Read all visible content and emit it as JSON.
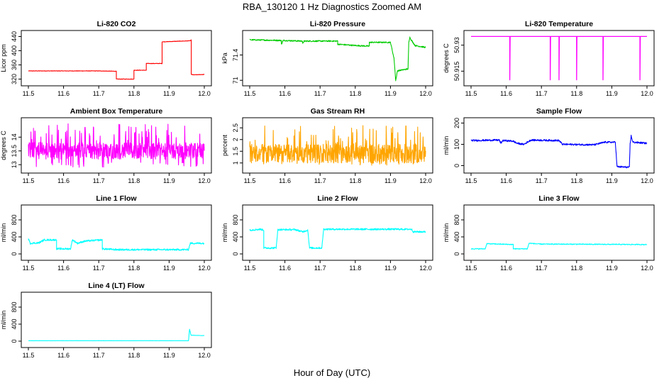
{
  "main_title": "RBA_130120  1 Hz Diagnostics Zoomed AM",
  "x_axis_label": "Hour of Day (UTC)",
  "chart_data": [
    {
      "id": "co2",
      "type": "line",
      "title": "Li-820 CO2",
      "ylabel": "Licor ppm",
      "color": "#ff0000",
      "noise": 0.6,
      "xlim": [
        11.5,
        12.0
      ],
      "ylim": [
        313,
        445
      ],
      "x_ticks": [
        "11.5",
        "11.6",
        "11.7",
        "11.8",
        "11.9",
        "12.0"
      ],
      "y_ticks": [
        320,
        360,
        400,
        440
      ],
      "points": [
        [
          11.5,
          343
        ],
        [
          11.7,
          343
        ],
        [
          11.7,
          343
        ],
        [
          11.75,
          342
        ],
        [
          11.75,
          320
        ],
        [
          11.8,
          320
        ],
        [
          11.8,
          345
        ],
        [
          11.835,
          345
        ],
        [
          11.835,
          364
        ],
        [
          11.88,
          364
        ],
        [
          11.88,
          425
        ],
        [
          11.96,
          428
        ],
        [
          11.963,
          430
        ],
        [
          11.963,
          333
        ],
        [
          11.97,
          332
        ],
        [
          12.0,
          333
        ]
      ]
    },
    {
      "id": "pressure",
      "type": "line",
      "title": "Li-820 Pressure",
      "ylabel": "kPa",
      "color": "#00cc00",
      "noise": 0.01,
      "xlim": [
        11.5,
        12.0
      ],
      "ylim": [
        70.98,
        71.72
      ],
      "x_ticks": [
        "11.5",
        "11.6",
        "11.7",
        "11.8",
        "11.9",
        "12.0"
      ],
      "y_ticks": [
        71.0,
        71.4
      ],
      "points": [
        [
          11.5,
          71.64
        ],
        [
          11.59,
          71.63
        ],
        [
          11.59,
          71.57
        ],
        [
          11.595,
          71.63
        ],
        [
          11.65,
          71.62
        ],
        [
          11.65,
          71.58
        ],
        [
          11.655,
          71.62
        ],
        [
          11.75,
          71.62
        ],
        [
          11.75,
          71.57
        ],
        [
          11.8,
          71.55
        ],
        [
          11.84,
          71.54
        ],
        [
          11.84,
          71.6
        ],
        [
          11.9,
          71.6
        ],
        [
          11.91,
          71.35
        ],
        [
          11.915,
          71.0
        ],
        [
          11.92,
          71.15
        ],
        [
          11.95,
          71.18
        ],
        [
          11.952,
          71.6
        ],
        [
          11.955,
          71.68
        ],
        [
          11.96,
          71.63
        ],
        [
          11.97,
          71.55
        ],
        [
          12.0,
          71.52
        ]
      ]
    },
    {
      "id": "temperature",
      "type": "line",
      "title": "Li-820 Temperature",
      "ylabel": "degrees C",
      "color": "#ff00ff",
      "noise": 0,
      "xlim": [
        11.5,
        12.0
      ],
      "ylim": [
        50.909,
        50.936
      ],
      "x_ticks": [
        "11.5",
        "11.6",
        "11.7",
        "11.8",
        "11.9",
        "12.0"
      ],
      "y_ticks": [
        50.915,
        50.93
      ],
      "spike_base": 50.935,
      "spike_low": 50.91,
      "spikes": [
        11.61,
        11.725,
        11.75,
        11.8,
        11.875,
        11.98
      ]
    },
    {
      "id": "ambient",
      "type": "line",
      "title": "Ambient Box Temperature",
      "ylabel": "degrees C",
      "color": "#ff00ff",
      "noise": 0.3,
      "xlim": [
        11.5,
        12.0
      ],
      "ylim": [
        12.85,
        14.55
      ],
      "x_ticks": [
        "11.5",
        "11.6",
        "11.7",
        "11.8",
        "11.9",
        "12.0"
      ],
      "y_ticks": [
        13.0,
        13.5,
        14.0
      ],
      "noise_base": 13.5,
      "noise_lo": 12.9,
      "noise_hi": 14.5
    },
    {
      "id": "rh",
      "type": "line",
      "title": "Gas Stream RH",
      "ylabel": "percent",
      "color": "#ffa500",
      "noise": 0.4,
      "xlim": [
        11.5,
        12.0
      ],
      "ylim": [
        0.75,
        2.75
      ],
      "x_ticks": [
        "11.5",
        "11.6",
        "11.7",
        "11.8",
        "11.9",
        "12.0"
      ],
      "y_ticks": [
        1.0,
        1.5,
        2.0,
        2.5
      ],
      "noise_base": 1.4,
      "noise_lo": 0.9,
      "noise_hi": 2.6
    },
    {
      "id": "sample",
      "type": "line",
      "title": "Sample Flow",
      "ylabel": "ml/min",
      "color": "#0000ff",
      "noise": 4,
      "xlim": [
        11.5,
        12.0
      ],
      "ylim": [
        -15,
        205
      ],
      "x_ticks": [
        "11.5",
        "11.6",
        "11.7",
        "11.8",
        "11.9",
        "12.0"
      ],
      "y_ticks": [
        0,
        100,
        200
      ],
      "points": [
        [
          11.5,
          118
        ],
        [
          11.58,
          120
        ],
        [
          11.585,
          105
        ],
        [
          11.59,
          118
        ],
        [
          11.62,
          115
        ],
        [
          11.63,
          105
        ],
        [
          11.65,
          100
        ],
        [
          11.67,
          120
        ],
        [
          11.75,
          118
        ],
        [
          11.76,
          100
        ],
        [
          11.85,
          98
        ],
        [
          11.88,
          110
        ],
        [
          11.91,
          110
        ],
        [
          11.915,
          -5
        ],
        [
          11.95,
          -8
        ],
        [
          11.952,
          100
        ],
        [
          11.955,
          140
        ],
        [
          11.96,
          110
        ],
        [
          12.0,
          105
        ]
      ]
    },
    {
      "id": "line1",
      "type": "line",
      "title": "Line 1 Flow",
      "ylabel": "ml/min",
      "color": "#00ffff",
      "noise": 20,
      "xlim": [
        11.5,
        12.0
      ],
      "ylim": [
        -50,
        1050
      ],
      "x_ticks": [
        "11.5",
        "11.6",
        "11.7",
        "11.8",
        "11.9",
        "12.0"
      ],
      "y_ticks": [
        0,
        400,
        800
      ],
      "points": [
        [
          11.5,
          360
        ],
        [
          11.505,
          250
        ],
        [
          11.53,
          260
        ],
        [
          11.545,
          330
        ],
        [
          11.58,
          330
        ],
        [
          11.58,
          120
        ],
        [
          11.62,
          120
        ],
        [
          11.625,
          330
        ],
        [
          11.64,
          250
        ],
        [
          11.66,
          300
        ],
        [
          11.71,
          330
        ],
        [
          11.71,
          120
        ],
        [
          11.75,
          100
        ],
        [
          11.955,
          100
        ],
        [
          11.96,
          250
        ],
        [
          12.0,
          250
        ]
      ]
    },
    {
      "id": "line2",
      "type": "line",
      "title": "Line 2 Flow",
      "ylabel": "ml/min",
      "color": "#00ffff",
      "noise": 20,
      "xlim": [
        11.5,
        12.0
      ],
      "ylim": [
        -50,
        1050
      ],
      "x_ticks": [
        "11.5",
        "11.6",
        "11.7",
        "11.8",
        "11.9",
        "12.0"
      ],
      "y_ticks": [
        0,
        400,
        800
      ],
      "points": [
        [
          11.5,
          560
        ],
        [
          11.53,
          580
        ],
        [
          11.54,
          560
        ],
        [
          11.54,
          140
        ],
        [
          11.575,
          140
        ],
        [
          11.58,
          570
        ],
        [
          11.63,
          570
        ],
        [
          11.65,
          520
        ],
        [
          11.665,
          560
        ],
        [
          11.67,
          140
        ],
        [
          11.705,
          140
        ],
        [
          11.71,
          580
        ],
        [
          11.96,
          580
        ],
        [
          11.965,
          520
        ],
        [
          12.0,
          520
        ]
      ]
    },
    {
      "id": "line3",
      "type": "line",
      "title": "Line 3 Flow",
      "ylabel": "ml/min",
      "color": "#00ffff",
      "noise": 10,
      "xlim": [
        11.5,
        12.0
      ],
      "ylim": [
        -50,
        1050
      ],
      "x_ticks": [
        "11.5",
        "11.6",
        "11.7",
        "11.8",
        "11.9",
        "12.0"
      ],
      "y_ticks": [
        0,
        400,
        800
      ],
      "points": [
        [
          11.5,
          120
        ],
        [
          11.54,
          120
        ],
        [
          11.545,
          240
        ],
        [
          11.62,
          220
        ],
        [
          11.62,
          120
        ],
        [
          11.66,
          120
        ],
        [
          11.665,
          250
        ],
        [
          11.7,
          230
        ],
        [
          11.75,
          230
        ],
        [
          12.0,
          220
        ]
      ]
    },
    {
      "id": "line4",
      "type": "line",
      "title": "Line 4 (LT) Flow",
      "ylabel": "ml/min",
      "color": "#00ffff",
      "noise": 2,
      "xlim": [
        11.5,
        12.0
      ],
      "ylim": [
        -50,
        1050
      ],
      "x_ticks": [
        "11.5",
        "11.6",
        "11.7",
        "11.8",
        "11.9",
        "12.0"
      ],
      "y_ticks": [
        0,
        400,
        800
      ],
      "points": [
        [
          11.5,
          10
        ],
        [
          11.955,
          10
        ],
        [
          11.958,
          280
        ],
        [
          11.962,
          140
        ],
        [
          12.0,
          130
        ]
      ]
    }
  ]
}
